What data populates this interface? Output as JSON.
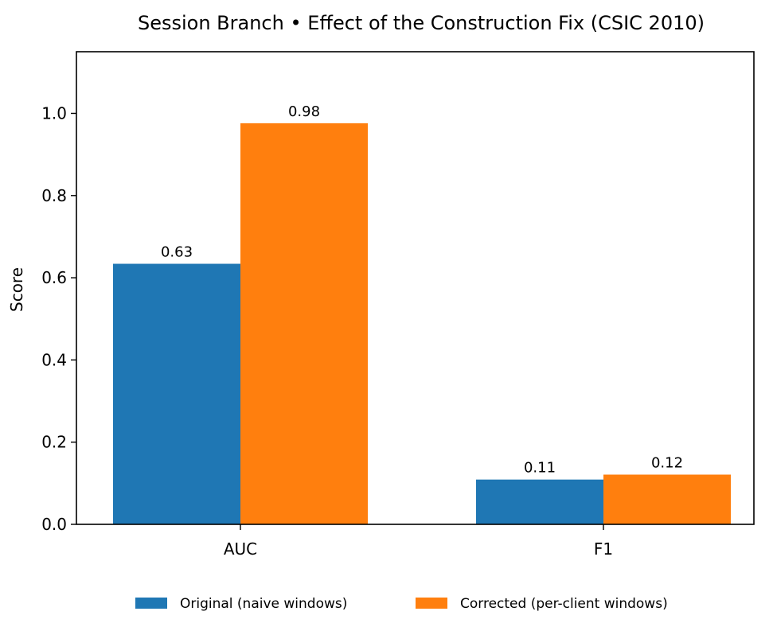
{
  "chart_data": {
    "type": "bar",
    "title": "Session Branch • Effect of the Construction Fix (CSIC 2010)",
    "xlabel": "",
    "ylabel": "Score",
    "categories": [
      "AUC",
      "F1"
    ],
    "series": [
      {
        "name": "Original (naive windows)",
        "values": [
          0.634,
          0.109
        ],
        "labels": [
          "0.63",
          "0.11"
        ],
        "color": "#1f77b4"
      },
      {
        "name": "Corrected (per-client windows)",
        "values": [
          0.976,
          0.121
        ],
        "labels": [
          "0.98",
          "0.12"
        ],
        "color": "#ff7f0e"
      }
    ],
    "ylim": [
      0,
      1.15
    ],
    "yticks": [
      0.0,
      0.2,
      0.4,
      0.6,
      0.8,
      1.0
    ],
    "ytick_labels": [
      "0.0",
      "0.2",
      "0.4",
      "0.6",
      "0.8",
      "1.0"
    ],
    "grid": false,
    "legend_position": "bottom-center"
  }
}
